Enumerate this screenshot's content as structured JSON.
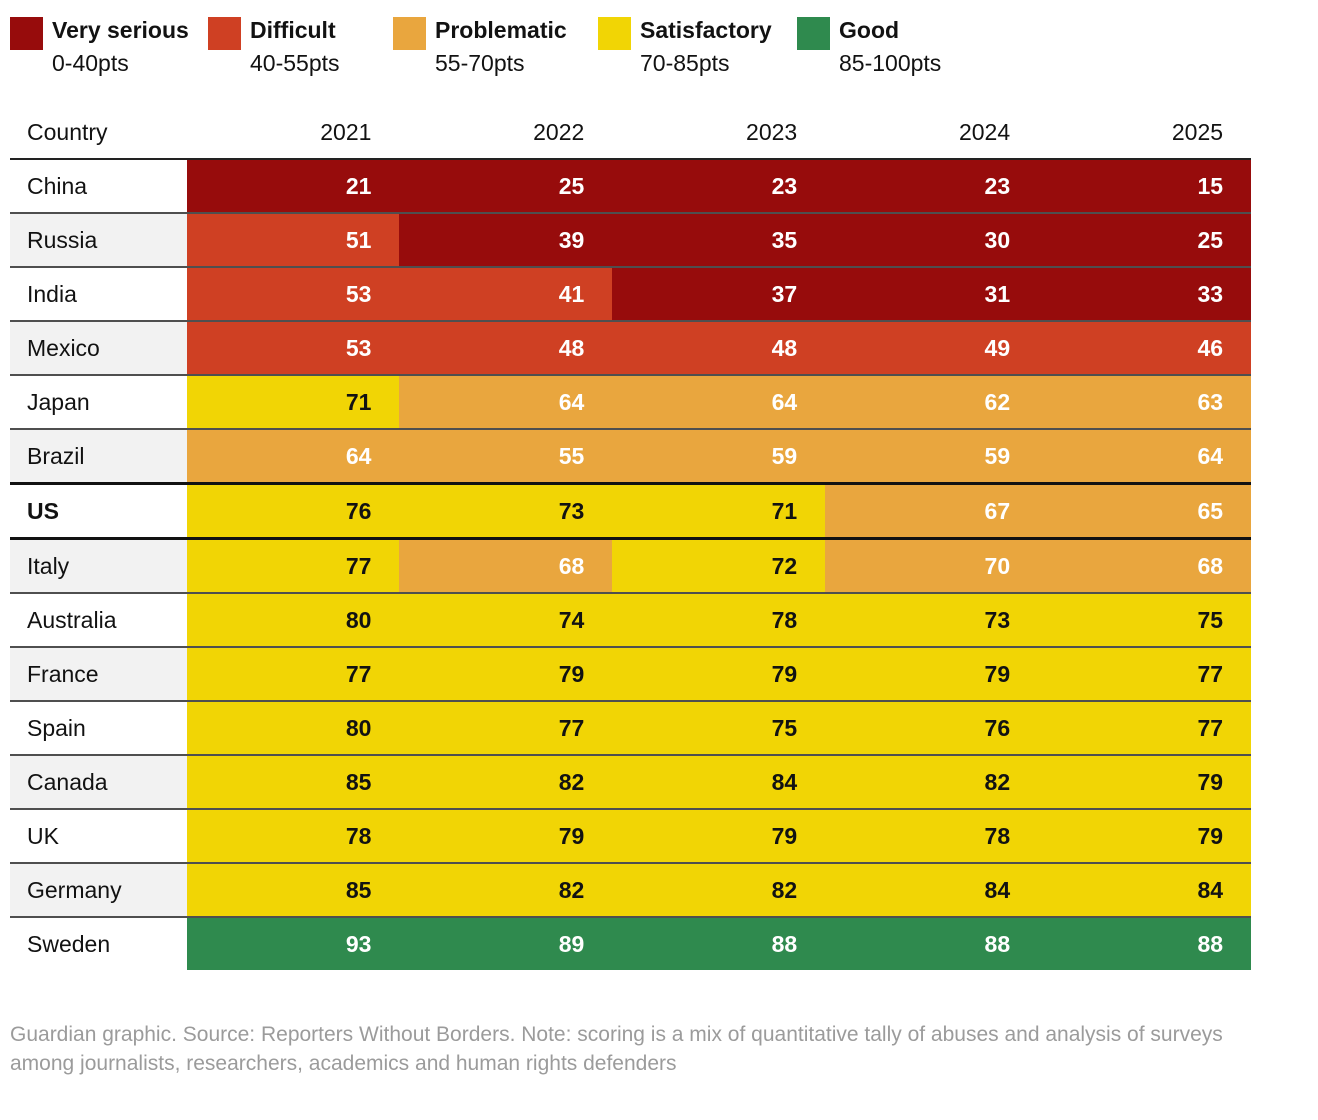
{
  "colors": {
    "very_serious": "#970c0c",
    "difficult": "#cf4023",
    "problematic": "#e9a63e",
    "satisfactory": "#f1d505",
    "good": "#2f8a4e",
    "text_light": "#ffffff",
    "text_dark": "#121212",
    "row_alt_bg": "#f2f2f2",
    "footer_text": "#9b9b9b"
  },
  "legend": {
    "items": [
      {
        "band": "very_serious",
        "label": "Very serious",
        "range": "0-40pts"
      },
      {
        "band": "difficult",
        "label": "Difficult",
        "range": "40-55pts"
      },
      {
        "band": "problematic",
        "label": "Problematic",
        "range": "55-70pts"
      },
      {
        "band": "satisfactory",
        "label": "Satisfactory",
        "range": "70-85pts"
      },
      {
        "band": "good",
        "label": "Good",
        "range": "85-100pts"
      }
    ]
  },
  "table": {
    "columns": [
      "Country",
      "2021",
      "2022",
      "2023",
      "2024",
      "2025"
    ],
    "rows": [
      {
        "country": "China",
        "bold": false,
        "highlight": false,
        "values": [
          21,
          25,
          23,
          23,
          15
        ],
        "bands": [
          "very_serious",
          "very_serious",
          "very_serious",
          "very_serious",
          "very_serious"
        ]
      },
      {
        "country": "Russia",
        "bold": false,
        "highlight": false,
        "values": [
          51,
          39,
          35,
          30,
          25
        ],
        "bands": [
          "difficult",
          "very_serious",
          "very_serious",
          "very_serious",
          "very_serious"
        ]
      },
      {
        "country": "India",
        "bold": false,
        "highlight": false,
        "values": [
          53,
          41,
          37,
          31,
          33
        ],
        "bands": [
          "difficult",
          "difficult",
          "very_serious",
          "very_serious",
          "very_serious"
        ]
      },
      {
        "country": "Mexico",
        "bold": false,
        "highlight": false,
        "values": [
          53,
          48,
          48,
          49,
          46
        ],
        "bands": [
          "difficult",
          "difficult",
          "difficult",
          "difficult",
          "difficult"
        ]
      },
      {
        "country": "Japan",
        "bold": false,
        "highlight": false,
        "values": [
          71,
          64,
          64,
          62,
          63
        ],
        "bands": [
          "satisfactory",
          "problematic",
          "problematic",
          "problematic",
          "problematic"
        ]
      },
      {
        "country": "Brazil",
        "bold": false,
        "highlight": false,
        "values": [
          64,
          55,
          59,
          59,
          64
        ],
        "bands": [
          "problematic",
          "problematic",
          "problematic",
          "problematic",
          "problematic"
        ]
      },
      {
        "country": "US",
        "bold": true,
        "highlight": true,
        "values": [
          76,
          73,
          71,
          67,
          65
        ],
        "bands": [
          "satisfactory",
          "satisfactory",
          "satisfactory",
          "problematic",
          "problematic"
        ]
      },
      {
        "country": "Italy",
        "bold": false,
        "highlight": false,
        "values": [
          77,
          68,
          72,
          70,
          68
        ],
        "bands": [
          "satisfactory",
          "problematic",
          "satisfactory",
          "problematic",
          "problematic"
        ]
      },
      {
        "country": "Australia",
        "bold": false,
        "highlight": false,
        "values": [
          80,
          74,
          78,
          73,
          75
        ],
        "bands": [
          "satisfactory",
          "satisfactory",
          "satisfactory",
          "satisfactory",
          "satisfactory"
        ]
      },
      {
        "country": "France",
        "bold": false,
        "highlight": false,
        "values": [
          77,
          79,
          79,
          79,
          77
        ],
        "bands": [
          "satisfactory",
          "satisfactory",
          "satisfactory",
          "satisfactory",
          "satisfactory"
        ]
      },
      {
        "country": "Spain",
        "bold": false,
        "highlight": false,
        "values": [
          80,
          77,
          75,
          76,
          77
        ],
        "bands": [
          "satisfactory",
          "satisfactory",
          "satisfactory",
          "satisfactory",
          "satisfactory"
        ]
      },
      {
        "country": "Canada",
        "bold": false,
        "highlight": false,
        "values": [
          85,
          82,
          84,
          82,
          79
        ],
        "bands": [
          "satisfactory",
          "satisfactory",
          "satisfactory",
          "satisfactory",
          "satisfactory"
        ]
      },
      {
        "country": "UK",
        "bold": false,
        "highlight": false,
        "values": [
          78,
          79,
          79,
          78,
          79
        ],
        "bands": [
          "satisfactory",
          "satisfactory",
          "satisfactory",
          "satisfactory",
          "satisfactory"
        ]
      },
      {
        "country": "Germany",
        "bold": false,
        "highlight": false,
        "values": [
          85,
          82,
          82,
          84,
          84
        ],
        "bands": [
          "satisfactory",
          "satisfactory",
          "satisfactory",
          "satisfactory",
          "satisfactory"
        ]
      },
      {
        "country": "Sweden",
        "bold": false,
        "highlight": false,
        "values": [
          93,
          89,
          88,
          88,
          88
        ],
        "bands": [
          "good",
          "good",
          "good",
          "good",
          "good"
        ]
      }
    ]
  },
  "footer": {
    "text": "Guardian graphic. Source: Reporters Without Borders. Note: scoring is a mix of quantitative tally of abuses and analysis of surveys among journalists, researchers, academics and human rights defenders"
  },
  "chart_data": {
    "type": "heatmap",
    "title": "",
    "x": [
      "2021",
      "2022",
      "2023",
      "2024",
      "2025"
    ],
    "series": [
      {
        "name": "China",
        "values": [
          21,
          25,
          23,
          23,
          15
        ]
      },
      {
        "name": "Russia",
        "values": [
          51,
          39,
          35,
          30,
          25
        ]
      },
      {
        "name": "India",
        "values": [
          53,
          41,
          37,
          31,
          33
        ]
      },
      {
        "name": "Mexico",
        "values": [
          53,
          48,
          48,
          49,
          46
        ]
      },
      {
        "name": "Japan",
        "values": [
          71,
          64,
          64,
          62,
          63
        ]
      },
      {
        "name": "Brazil",
        "values": [
          64,
          55,
          59,
          59,
          64
        ]
      },
      {
        "name": "US",
        "values": [
          76,
          73,
          71,
          67,
          65
        ]
      },
      {
        "name": "Italy",
        "values": [
          77,
          68,
          72,
          70,
          68
        ]
      },
      {
        "name": "Australia",
        "values": [
          80,
          74,
          78,
          73,
          75
        ]
      },
      {
        "name": "France",
        "values": [
          77,
          79,
          79,
          79,
          77
        ]
      },
      {
        "name": "Spain",
        "values": [
          80,
          77,
          75,
          76,
          77
        ]
      },
      {
        "name": "Canada",
        "values": [
          85,
          82,
          84,
          82,
          79
        ]
      },
      {
        "name": "UK",
        "values": [
          78,
          79,
          79,
          78,
          79
        ]
      },
      {
        "name": "Germany",
        "values": [
          85,
          82,
          82,
          84,
          84
        ]
      },
      {
        "name": "Sweden",
        "values": [
          93,
          89,
          88,
          88,
          88
        ]
      }
    ],
    "legend_bands": [
      {
        "label": "Very serious",
        "range": [
          0,
          40
        ]
      },
      {
        "label": "Difficult",
        "range": [
          40,
          55
        ]
      },
      {
        "label": "Problematic",
        "range": [
          55,
          70
        ]
      },
      {
        "label": "Satisfactory",
        "range": [
          70,
          85
        ]
      },
      {
        "label": "Good",
        "range": [
          85,
          100
        ]
      }
    ],
    "legend_position": "top"
  }
}
